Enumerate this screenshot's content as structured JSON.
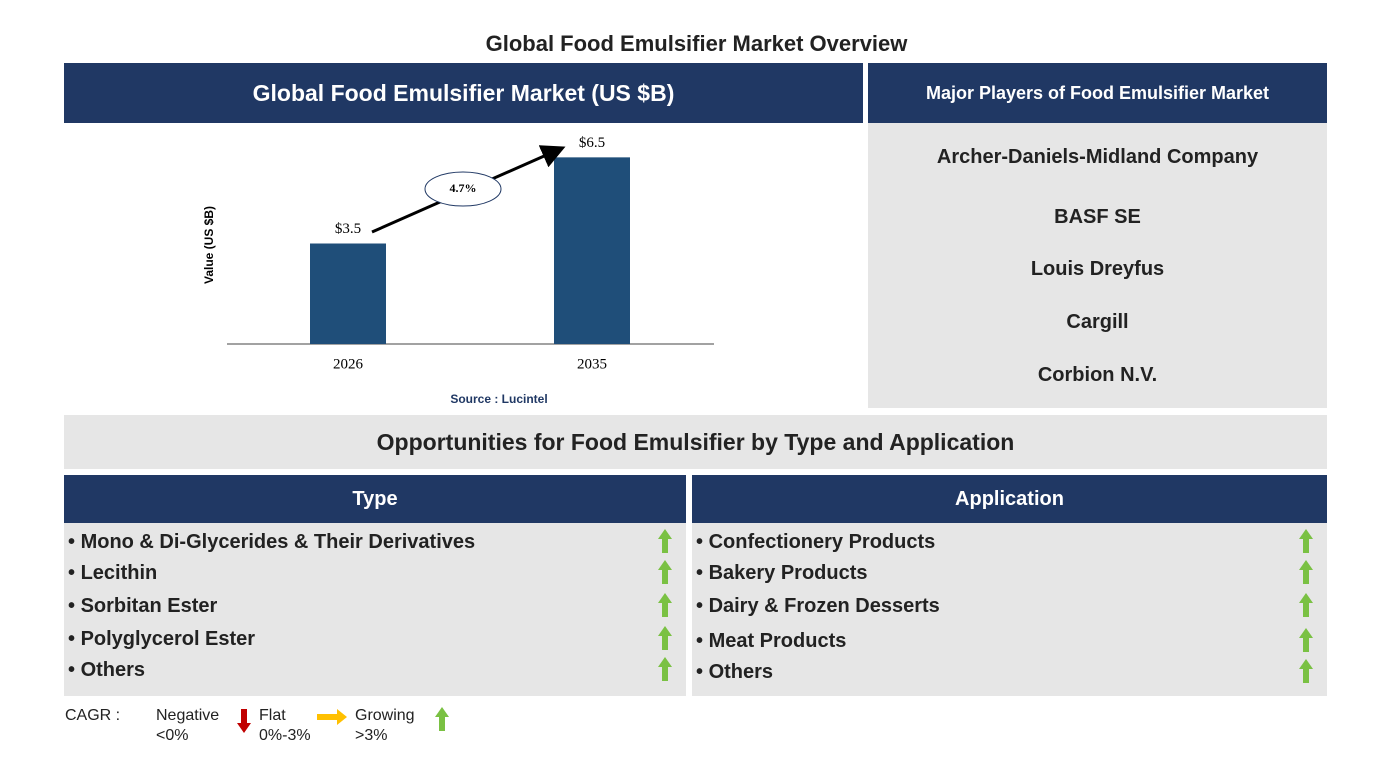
{
  "title": "Global Food Emulsifier Market Overview",
  "chart_data": {
    "type": "bar",
    "title": "Global Food Emulsifier Market (US $B)",
    "y_label": "Value (US $B)",
    "categories": [
      "2026",
      "2035"
    ],
    "values": [
      3.5,
      6.5
    ],
    "value_labels": [
      "$3.5",
      "$6.5"
    ],
    "color": "#1f4e79",
    "ylim": [
      0,
      7
    ],
    "annotation": "4.7%",
    "source": "Source : Lucintel"
  },
  "players": {
    "title": "Major Players of Food Emulsifier Market",
    "items": [
      "Archer-Daniels-Midland Company",
      "BASF SE",
      "Louis Dreyfus",
      "Cargill",
      "Corbion N.V."
    ]
  },
  "opportunities": {
    "title": "Opportunities for Food Emulsifier by Type and Application",
    "type": {
      "title": "Type",
      "items": [
        "Mono & Di-Glycerides & Their Derivatives",
        "Lecithin",
        "Sorbitan Ester",
        "Polyglycerol Ester",
        "Others"
      ]
    },
    "application": {
      "title": "Application",
      "items": [
        "Confectionery Products",
        "Bakery Products",
        "Dairy & Frozen Desserts",
        "Meat Products",
        "Others"
      ]
    }
  },
  "legend": {
    "label": "CAGR :",
    "items": [
      {
        "label": "Negative",
        "range": "<0%"
      },
      {
        "label": "Flat",
        "range": "0%-3%"
      },
      {
        "label": "Growing",
        "range": ">3%"
      }
    ]
  }
}
